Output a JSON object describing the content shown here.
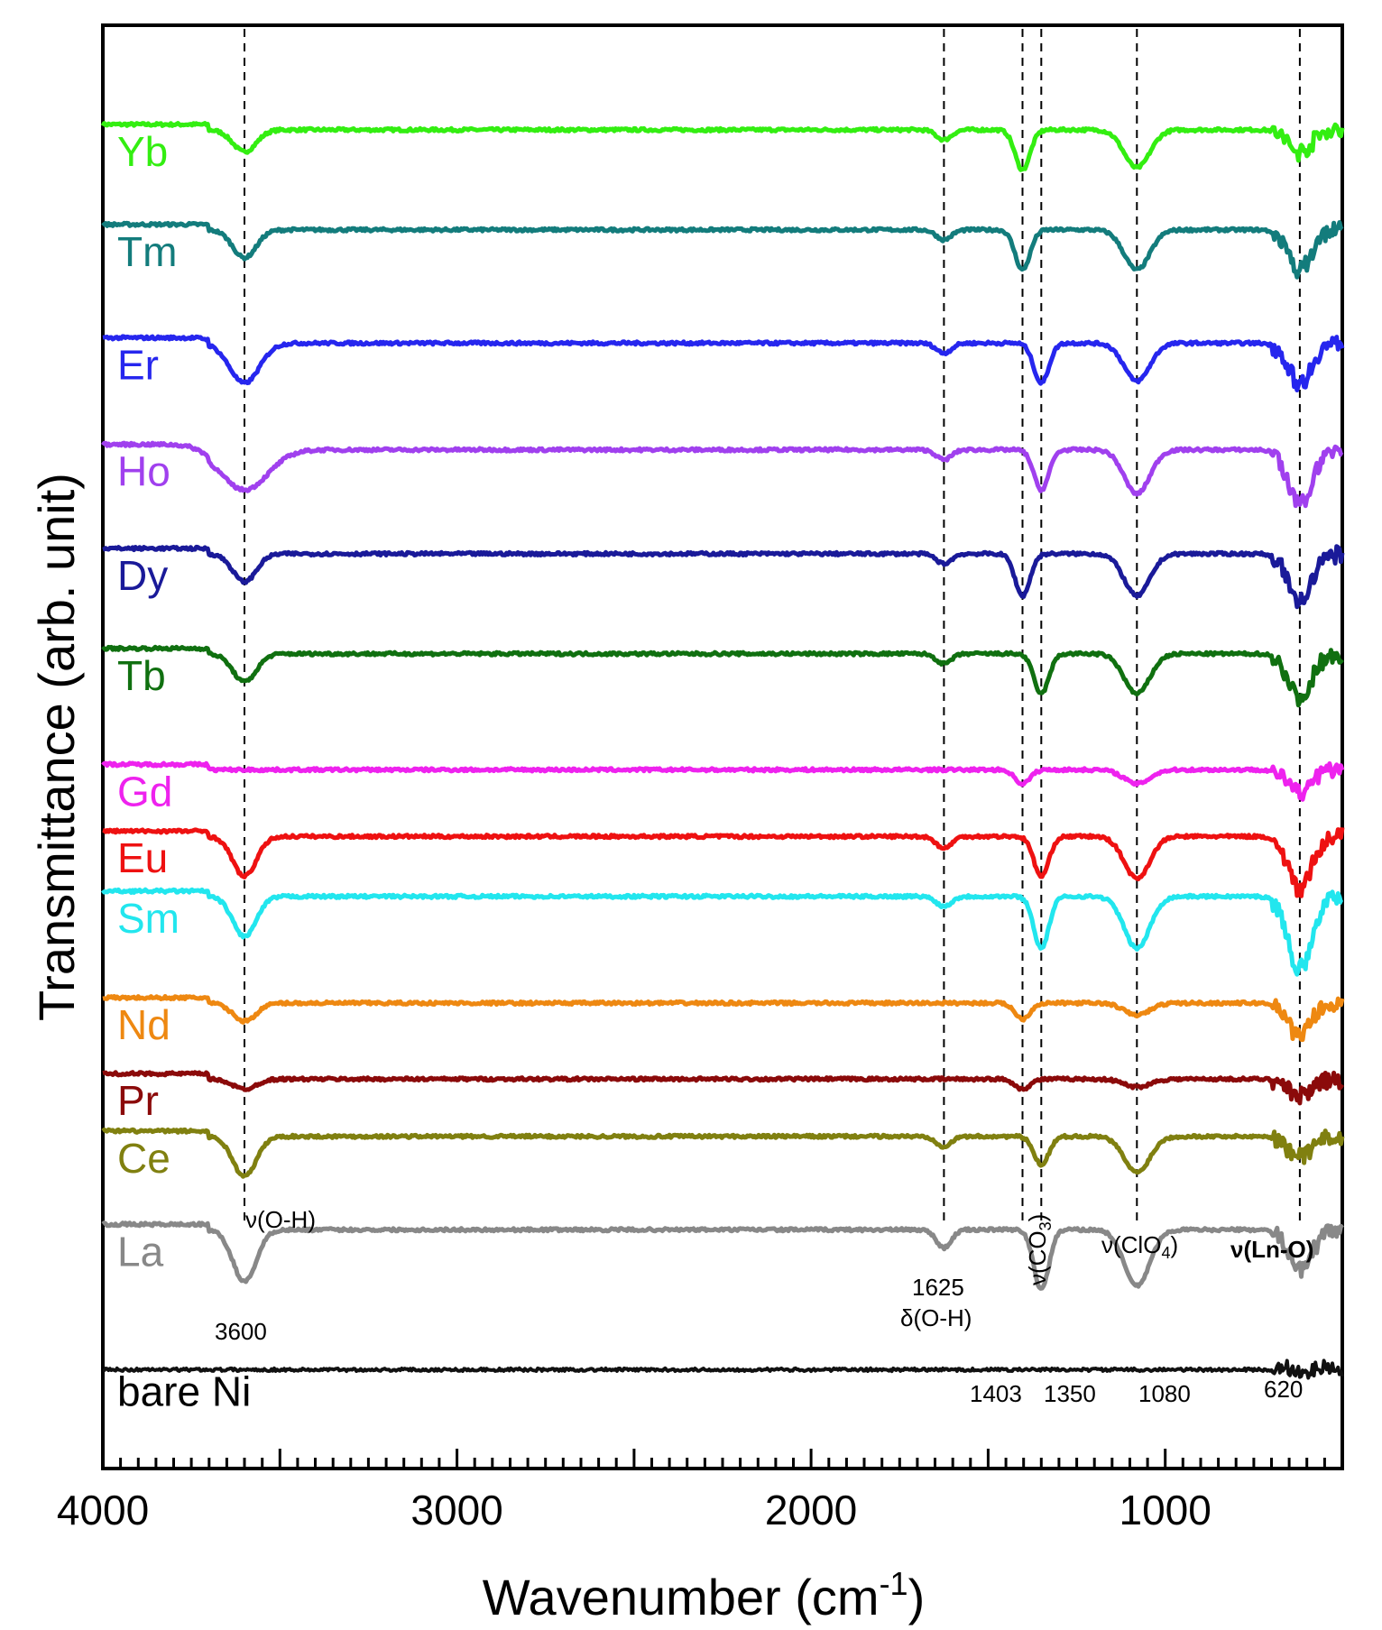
{
  "chart_data": {
    "type": "line",
    "xlabel": "Wavenumber (cm",
    "xlabel_sup": "-1",
    "xlabel_close": ")",
    "ylabel": "Transmittance (arb. unit)",
    "xlim": [
      4000,
      500
    ],
    "xticks": [
      4000,
      3000,
      2000,
      1000
    ],
    "grid": false,
    "series": [
      {
        "name": "Yb",
        "color": "#33ee11",
        "base": 0.95,
        "scale": 0.03,
        "dips": [
          [
            3600,
            0.55,
            0.55
          ],
          [
            1625,
            0.25,
            0.35
          ],
          [
            1403,
            1.0,
            0.35
          ],
          [
            1080,
            0.95,
            0.6
          ],
          [
            620,
            0.55,
            0.55
          ]
        ]
      },
      {
        "name": "Tm",
        "color": "#137c7c",
        "base": 0.875,
        "scale": 0.03,
        "dips": [
          [
            3600,
            0.7,
            0.55
          ],
          [
            1625,
            0.25,
            0.35
          ],
          [
            1403,
            1.0,
            0.35
          ],
          [
            1080,
            1.0,
            0.6
          ],
          [
            620,
            1.0,
            0.55
          ]
        ]
      },
      {
        "name": "Er",
        "color": "#2626ee",
        "base": 0.79,
        "scale": 0.03,
        "dips": [
          [
            3600,
            1.0,
            0.7
          ],
          [
            1625,
            0.25,
            0.35
          ],
          [
            1350,
            1.0,
            0.35
          ],
          [
            1080,
            0.95,
            0.6
          ],
          [
            620,
            1.0,
            0.55
          ]
        ]
      },
      {
        "name": "Ho",
        "color": "#a040ee",
        "base": 0.71,
        "scale": 0.03,
        "dips": [
          [
            3600,
            1.0,
            1.1
          ],
          [
            1625,
            0.25,
            0.35
          ],
          [
            1350,
            1.0,
            0.35
          ],
          [
            1080,
            1.1,
            0.6
          ],
          [
            620,
            1.4,
            0.55
          ]
        ]
      },
      {
        "name": "Dy",
        "color": "#1a1a99",
        "base": 0.632,
        "scale": 0.03,
        "dips": [
          [
            3600,
            0.7,
            0.55
          ],
          [
            1625,
            0.25,
            0.35
          ],
          [
            1403,
            1.05,
            0.35
          ],
          [
            1080,
            1.05,
            0.6
          ],
          [
            620,
            1.2,
            0.55
          ]
        ]
      },
      {
        "name": "Tb",
        "color": "#107010",
        "base": 0.557,
        "scale": 0.03,
        "dips": [
          [
            3600,
            0.7,
            0.55
          ],
          [
            1625,
            0.25,
            0.35
          ],
          [
            1350,
            1.0,
            0.35
          ],
          [
            1080,
            1.0,
            0.6
          ],
          [
            620,
            1.1,
            0.55
          ]
        ]
      },
      {
        "name": "Gd",
        "color": "#ee22ee",
        "base": 0.47,
        "scale": 0.03,
        "dips": [
          [
            1403,
            0.35,
            0.35
          ],
          [
            1080,
            0.35,
            0.6
          ],
          [
            620,
            0.55,
            0.55
          ]
        ]
      },
      {
        "name": "Eu",
        "color": "#ee1111",
        "base": 0.42,
        "scale": 0.03,
        "dips": [
          [
            3600,
            1.0,
            0.55
          ],
          [
            1625,
            0.3,
            0.35
          ],
          [
            1350,
            1.0,
            0.35
          ],
          [
            1080,
            1.05,
            0.6
          ],
          [
            620,
            1.3,
            0.55
          ]
        ]
      },
      {
        "name": "Sm",
        "color": "#22e6ee",
        "base": 0.375,
        "scale": 0.03,
        "dips": [
          [
            3600,
            1.0,
            0.55
          ],
          [
            1625,
            0.25,
            0.35
          ],
          [
            1350,
            1.3,
            0.35
          ],
          [
            1080,
            1.3,
            0.6
          ],
          [
            620,
            1.8,
            0.55
          ]
        ]
      },
      {
        "name": "Nd",
        "color": "#ee8811",
        "base": 0.295,
        "scale": 0.03,
        "dips": [
          [
            3600,
            0.45,
            0.55
          ],
          [
            1403,
            0.4,
            0.35
          ],
          [
            1080,
            0.3,
            0.6
          ],
          [
            620,
            0.8,
            0.55
          ]
        ]
      },
      {
        "name": "Pr",
        "color": "#8b0a0a",
        "base": 0.238,
        "scale": 0.03,
        "dips": [
          [
            3600,
            0.25,
            0.55
          ],
          [
            1403,
            0.25,
            0.35
          ],
          [
            1080,
            0.2,
            0.6
          ],
          [
            620,
            0.4,
            0.55
          ]
        ]
      },
      {
        "name": "Ce",
        "color": "#808010",
        "base": 0.195,
        "scale": 0.03,
        "dips": [
          [
            3600,
            1.0,
            0.55
          ],
          [
            1625,
            0.25,
            0.35
          ],
          [
            1350,
            0.7,
            0.35
          ],
          [
            1080,
            0.9,
            0.6
          ],
          [
            620,
            0.5,
            0.55
          ]
        ]
      },
      {
        "name": "La",
        "color": "#888888",
        "base": 0.125,
        "scale": 0.03,
        "dips": [
          [
            3600,
            1.3,
            0.55
          ],
          [
            1625,
            0.45,
            0.35
          ],
          [
            1350,
            1.5,
            0.35
          ],
          [
            1080,
            1.4,
            0.6
          ],
          [
            620,
            1.0,
            0.55
          ]
        ]
      },
      {
        "name": "bare Ni",
        "color": "#111111",
        "base": 0.02,
        "scale": 0.03,
        "dips": []
      }
    ],
    "reference_lines": [
      3600,
      1625,
      1403,
      1350,
      1080,
      620
    ],
    "annotations": {
      "oh_stretch": "ν(O-H)",
      "co3": "ν(CO",
      "co3_sub": "3",
      "co3_close": ")",
      "clo4": "ν(ClO",
      "clo4_sub": "4",
      "clo4_close": ")",
      "ln_o": "ν(Ln-O)",
      "oh_bend": "δ(O-H)",
      "peaks": [
        "3600",
        "1625",
        "1403",
        "1350",
        "1080",
        "620"
      ]
    }
  }
}
